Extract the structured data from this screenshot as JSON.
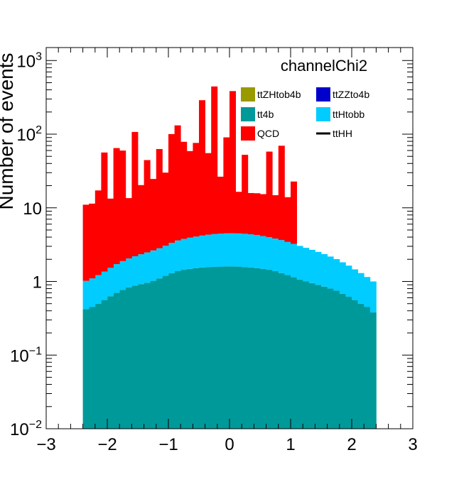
{
  "chart_data": {
    "type": "bar",
    "title": "channelChi2",
    "xlabel": "",
    "ylabel": "Number of events",
    "xlim": [
      -3,
      3
    ],
    "ylim": [
      0.01,
      1500
    ],
    "yscale": "log",
    "bin_edges_range": [
      -2.4,
      2.4
    ],
    "n_bins": 48,
    "x_ticks": [
      {
        "value": -3,
        "label": "−3"
      },
      {
        "value": -2,
        "label": "−2"
      },
      {
        "value": -1,
        "label": "−1"
      },
      {
        "value": 0,
        "label": "0"
      },
      {
        "value": 1,
        "label": "1"
      },
      {
        "value": 2,
        "label": "2"
      },
      {
        "value": 3,
        "label": "3"
      }
    ],
    "y_ticks": [
      {
        "value": 0.01,
        "base": "10",
        "exp": "−2"
      },
      {
        "value": 0.1,
        "base": "10",
        "exp": "−1"
      },
      {
        "value": 1,
        "base": "1",
        "exp": ""
      },
      {
        "value": 10,
        "base": "10",
        "exp": ""
      },
      {
        "value": 100,
        "base": "10",
        "exp": "2"
      },
      {
        "value": 1000,
        "base": "10",
        "exp": "3"
      }
    ],
    "legend_position": "top-right",
    "legend": [
      {
        "name": "ttZHtob4b",
        "color": "#999900",
        "kind": "box"
      },
      {
        "name": "ttZZto4b",
        "color": "#0000cc",
        "kind": "box"
      },
      {
        "name": "tt4b",
        "color": "#009999",
        "kind": "box"
      },
      {
        "name": "ttHtobb",
        "color": "#00ccff",
        "kind": "box"
      },
      {
        "name": "QCD",
        "color": "#ff0000",
        "kind": "box"
      },
      {
        "name": "ttHH",
        "color": "#000000",
        "kind": "line"
      }
    ],
    "series": [
      {
        "name": "tt4b",
        "color": "#009999",
        "values": [
          0.42,
          0.45,
          0.5,
          0.56,
          0.63,
          0.7,
          0.77,
          0.83,
          0.88,
          0.92,
          0.96,
          1.02,
          1.1,
          1.2,
          1.3,
          1.38,
          1.44,
          1.48,
          1.52,
          1.55,
          1.57,
          1.58,
          1.59,
          1.6,
          1.6,
          1.59,
          1.57,
          1.55,
          1.52,
          1.48,
          1.44,
          1.38,
          1.3,
          1.22,
          1.14,
          1.06,
          1.0,
          0.95,
          0.9,
          0.85,
          0.8,
          0.75,
          0.68,
          0.62,
          0.56,
          0.5,
          0.45,
          0.38
        ]
      },
      {
        "name": "ttHtobb",
        "color": "#00ccff",
        "values": [
          0.6,
          0.65,
          0.72,
          0.8,
          0.9,
          1.02,
          1.12,
          1.22,
          1.32,
          1.42,
          1.52,
          1.62,
          1.72,
          1.85,
          2.05,
          2.22,
          2.35,
          2.45,
          2.55,
          2.65,
          2.75,
          2.82,
          2.87,
          2.9,
          2.92,
          2.9,
          2.87,
          2.82,
          2.75,
          2.65,
          2.55,
          2.45,
          2.35,
          2.22,
          2.1,
          1.98,
          1.86,
          1.74,
          1.62,
          1.5,
          1.38,
          1.26,
          1.14,
          1.02,
          0.9,
          0.8,
          0.7,
          0.62
        ]
      },
      {
        "name": "ttHH",
        "color": "#000000",
        "values": []
      },
      {
        "name": "QCD",
        "color": "#ff0000",
        "values": [
          10,
          10.3,
          16,
          55,
          11.8,
          63,
          58,
          11.5,
          105,
          18,
          42,
          22,
          60,
          27,
          97,
          128,
          75,
          55,
          72,
          285,
          51,
          440,
          22,
          86,
          380,
          12,
          48,
          11.5,
          11.5,
          11.2,
          54,
          11,
          66,
          10.5,
          19.5,
          0,
          0,
          0,
          0,
          0,
          0,
          0,
          0,
          0,
          0,
          0,
          0,
          0
        ]
      }
    ]
  }
}
